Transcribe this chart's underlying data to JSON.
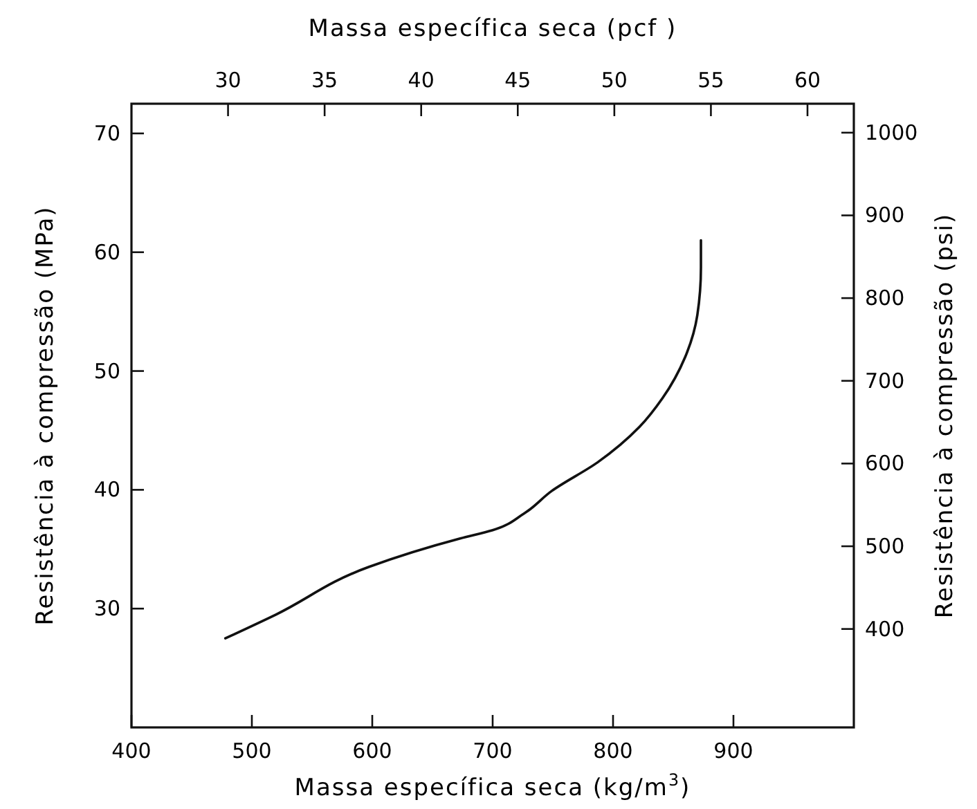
{
  "chart_data": {
    "type": "line",
    "xlabel": "Massa específica seca (kg/m$^{3}$)",
    "x2label": "Massa específica seca (pcf )",
    "ylabel": "Resistência à compressão (MPa)",
    "y2label": "Resistência à compressão (psi)",
    "xlim": [
      400,
      1000
    ],
    "xticks": [
      400,
      500,
      600,
      700,
      800,
      900
    ],
    "x2lim": [
      25,
      62.4
    ],
    "x2ticks": [
      30,
      35,
      40,
      45,
      50,
      55,
      60
    ],
    "ylim": [
      20,
      72.5
    ],
    "yticks": [
      30,
      40,
      50,
      60,
      70
    ],
    "y2lim": [
      281,
      1035
    ],
    "y2ticks": [
      400,
      500,
      600,
      700,
      800,
      900,
      1000
    ],
    "grid": false,
    "line_style": "solid",
    "series": [
      {
        "color": "#111111",
        "x": [
          478,
          520,
          597,
          673,
          700,
          726,
          749,
          787,
          822,
          841,
          860,
          870,
          873,
          873
        ],
        "values": [
          27.5,
          29.5,
          33.5,
          35.9,
          36.6,
          38.0,
          39.9,
          42.3,
          45.3,
          47.7,
          51.2,
          54.7,
          58.7,
          61
        ]
      }
    ]
  }
}
